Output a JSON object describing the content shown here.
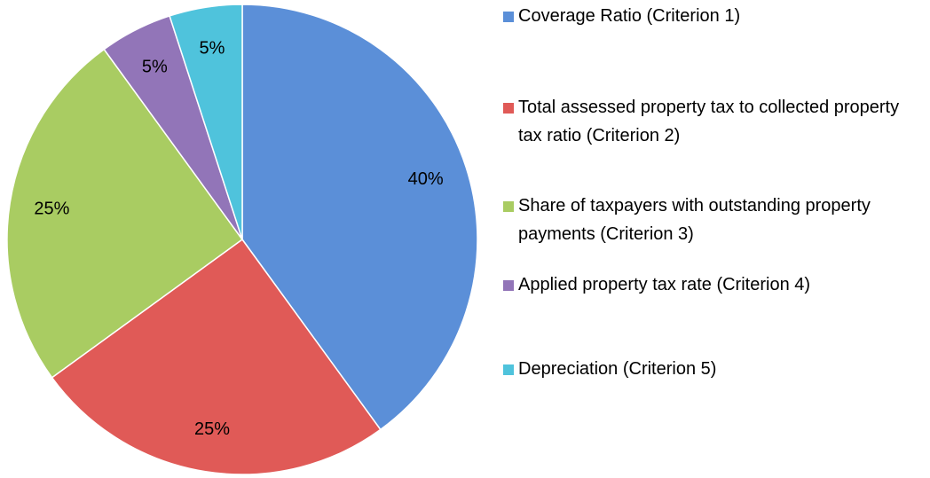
{
  "chart_data": {
    "type": "pie",
    "categories": [
      "Coverage Ratio (Criterion 1)",
      "Total assessed property tax to collected property tax ratio (Criterion 2)",
      "Share of taxpayers with outstanding property payments (Criterion 3)",
      "Applied property tax rate (Criterion 4)",
      "Depreciation (Criterion 5)"
    ],
    "values": [
      40,
      25,
      25,
      5,
      5
    ],
    "value_labels": [
      "40%",
      "25%",
      "25%",
      "5%",
      "5%"
    ],
    "colors": [
      "#5b8fd8",
      "#e05a57",
      "#a9cc62",
      "#9275b8",
      "#4fc3dc"
    ],
    "legend": "right"
  }
}
